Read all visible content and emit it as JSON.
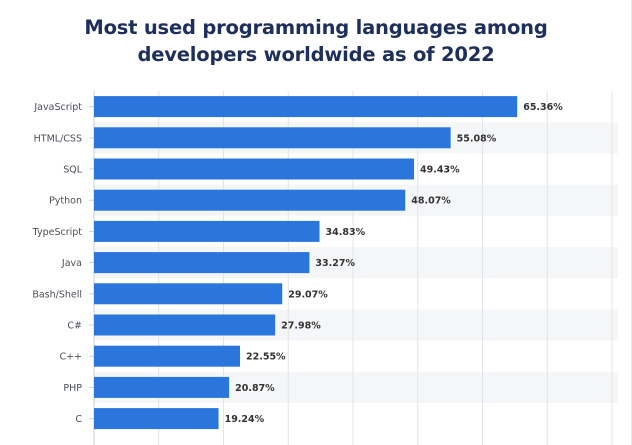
{
  "colors": {
    "bar": "#2a76dd",
    "title": "#1d2f5c",
    "row_band": "#f5f6f8",
    "grid": "#e1e4ea",
    "label": "#4a4f57",
    "value_label": "#333333"
  },
  "chart_data": {
    "type": "bar",
    "orientation": "horizontal",
    "title": "Most used programming languages among developers worldwide as of 2022",
    "title_lines": [
      "Most used programming languages among",
      "developers worldwide as of 2022"
    ],
    "xlabel": "",
    "ylabel": "",
    "grid": true,
    "categories": [
      "JavaScript",
      "HTML/CSS",
      "SQL",
      "Python",
      "TypeScript",
      "Java",
      "Bash/Shell",
      "C#",
      "C++",
      "PHP",
      "C"
    ],
    "values": [
      65.36,
      55.08,
      49.43,
      48.07,
      34.83,
      33.27,
      29.07,
      27.98,
      22.55,
      20.87,
      19.24
    ],
    "value_labels": [
      "65.36%",
      "55.08%",
      "49.43%",
      "48.07%",
      "34.83%",
      "33.27%",
      "29.07%",
      "27.98%",
      "22.55%",
      "20.87%",
      "19.24%"
    ],
    "xlim": [
      0,
      80
    ]
  }
}
